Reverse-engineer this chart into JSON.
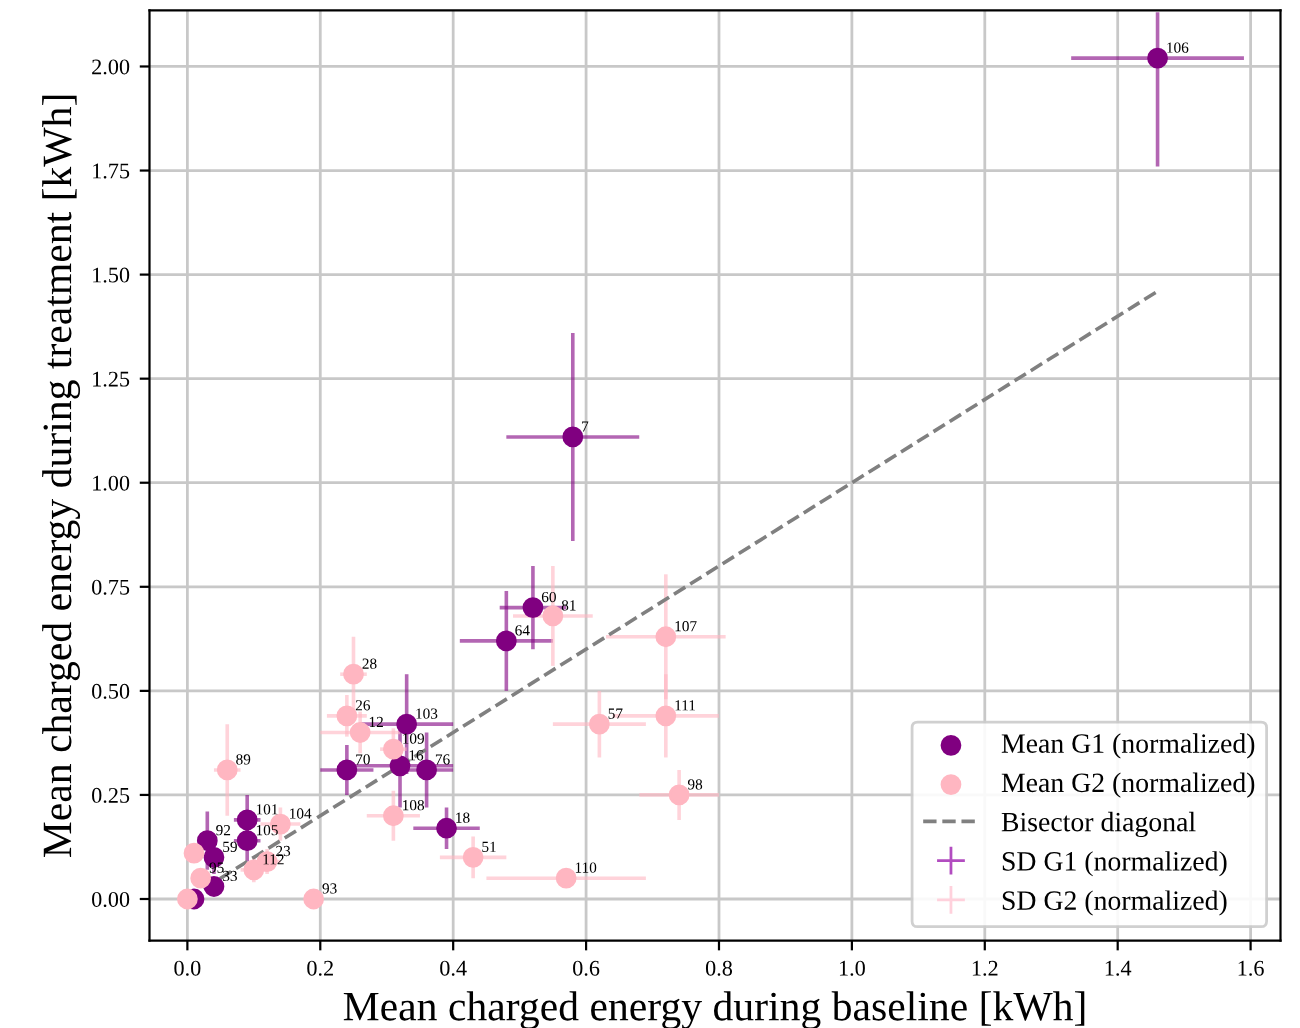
{
  "chart_data": {
    "type": "scatter",
    "xlabel": "Mean charged energy during baseline [kWh]",
    "ylabel": "Mean charged energy during treatment [kWh]",
    "xlim": [
      -0.057,
      1.645
    ],
    "ylim": [
      -0.1,
      2.135
    ],
    "xticks": [
      {
        "value": 0,
        "label": "0.0"
      },
      0.2,
      0.4,
      0.6,
      0.8,
      {
        "value": 1,
        "label": "1.0"
      },
      1.2,
      1.4,
      1.6
    ],
    "yticks": [
      {
        "value": 0,
        "label": "0.00"
      },
      0.25,
      {
        "value": 0.5,
        "label": "0.50"
      },
      0.75,
      {
        "value": 1,
        "label": "1.00"
      },
      1.25,
      {
        "value": 1.5,
        "label": "1.50"
      },
      1.75,
      {
        "value": 2,
        "label": "2.00"
      }
    ],
    "grid": true,
    "legend": "bottom right",
    "series": [
      {
        "name": "Mean G1 (normalized)",
        "marker": "circle",
        "color": "#800080",
        "x": [
          1.46,
          0.58,
          0.52,
          0.48,
          0.33,
          0.24,
          0.32,
          0.36,
          0.39,
          0.09,
          0.09,
          0.03,
          0.04,
          0.04,
          0.01
        ],
        "values": [
          2.02,
          1.11,
          0.7,
          0.62,
          0.42,
          0.31,
          0.32,
          0.31,
          0.17,
          0.19,
          0.14,
          0.14,
          0.1,
          0.03,
          0.0
        ],
        "xerrors": [
          0.13,
          0.1,
          0.05,
          0.07,
          0.07,
          0.04,
          0.08,
          0.04,
          0.05,
          0.02,
          0.02,
          0.01,
          0.01,
          0.01,
          0.01
        ],
        "errors": [
          [
            1.76,
            2.13
          ],
          0.25,
          0.1,
          0.12,
          0.12,
          0.06,
          0.1,
          0.09,
          0.05,
          0.06,
          0.05,
          0.07,
          0.04,
          0.02,
          0.01
        ]
      },
      {
        "name": "Mean G2 (normalized)",
        "marker": "circle",
        "color": "#ffb6c1",
        "x": [
          0.55,
          0.72,
          0.62,
          0.72,
          0.74,
          0.43,
          0.57,
          0.31,
          0.31,
          0.25,
          0.24,
          0.26,
          0.06,
          0.14,
          0.12,
          0.1,
          0.19,
          0.02,
          0.01,
          0.0
        ],
        "values": [
          0.68,
          0.63,
          0.42,
          0.44,
          0.25,
          0.1,
          0.05,
          0.2,
          0.36,
          0.54,
          0.44,
          0.4,
          0.31,
          0.18,
          0.09,
          0.07,
          0.0,
          0.05,
          0.11,
          0.0
        ],
        "xerrors": [
          0.06,
          0.09,
          0.07,
          0.08,
          0.06,
          0.05,
          0.12,
          0.04,
          0.02,
          0.02,
          0.03,
          0.06,
          0.02,
          0.03,
          0.02,
          0.02,
          0.01,
          0.01,
          0.01,
          0.01
        ],
        "errors": [
          0.12,
          0.15,
          0.08,
          0.1,
          0.06,
          0.05,
          0.02,
          0.06,
          0.05,
          0.09,
          0.05,
          0.05,
          0.11,
          0.04,
          0.03,
          0.03,
          0.01,
          0.02,
          0.02,
          0.01
        ]
      },
      {
        "name": "Bisector diagonal",
        "type": "line",
        "line_style": "dashed",
        "marker": "none",
        "color": "#808080",
        "x": [
          0,
          1.46
        ],
        "values": [
          0,
          1.46
        ]
      },
      {
        "name": "SD G1 (normalized)",
        "marker": "cross",
        "color": "#b24cc0"
      },
      {
        "name": "SD G2 (normalized)",
        "marker": "cross",
        "color": "#ffd1dc"
      }
    ],
    "annotations": [
      {
        "text": "106",
        "x": 1.46,
        "y": 2.02
      },
      {
        "text": "7",
        "x": 0.58,
        "y": 1.11
      },
      {
        "text": "60",
        "x": 0.52,
        "y": 0.7
      },
      {
        "text": "64",
        "x": 0.48,
        "y": 0.62
      },
      {
        "text": "103",
        "x": 0.33,
        "y": 0.42
      },
      {
        "text": "70",
        "x": 0.24,
        "y": 0.31
      },
      {
        "text": "16",
        "x": 0.32,
        "y": 0.32
      },
      {
        "text": "76",
        "x": 0.36,
        "y": 0.31
      },
      {
        "text": "18",
        "x": 0.39,
        "y": 0.17
      },
      {
        "text": "101",
        "x": 0.09,
        "y": 0.19
      },
      {
        "text": "105",
        "x": 0.09,
        "y": 0.14
      },
      {
        "text": "92",
        "x": 0.03,
        "y": 0.14
      },
      {
        "text": "59",
        "x": 0.04,
        "y": 0.1
      },
      {
        "text": "33",
        "x": 0.04,
        "y": 0.03
      },
      {
        "text": "81",
        "x": 0.55,
        "y": 0.68
      },
      {
        "text": "107",
        "x": 0.72,
        "y": 0.63
      },
      {
        "text": "57",
        "x": 0.62,
        "y": 0.42
      },
      {
        "text": "111",
        "x": 0.72,
        "y": 0.44
      },
      {
        "text": "98",
        "x": 0.74,
        "y": 0.25
      },
      {
        "text": "51",
        "x": 0.43,
        "y": 0.1
      },
      {
        "text": "110",
        "x": 0.57,
        "y": 0.05
      },
      {
        "text": "108",
        "x": 0.31,
        "y": 0.2
      },
      {
        "text": "109",
        "x": 0.31,
        "y": 0.36
      },
      {
        "text": "28",
        "x": 0.25,
        "y": 0.54
      },
      {
        "text": "26",
        "x": 0.24,
        "y": 0.44
      },
      {
        "text": "12",
        "x": 0.26,
        "y": 0.4
      },
      {
        "text": "89",
        "x": 0.06,
        "y": 0.31
      },
      {
        "text": "104",
        "x": 0.14,
        "y": 0.18
      },
      {
        "text": "23",
        "x": 0.12,
        "y": 0.09
      },
      {
        "text": "112",
        "x": 0.1,
        "y": 0.07
      },
      {
        "text": "93",
        "x": 0.19,
        "y": 0.0
      },
      {
        "text": "95",
        "x": 0.02,
        "y": 0.05
      }
    ]
  }
}
